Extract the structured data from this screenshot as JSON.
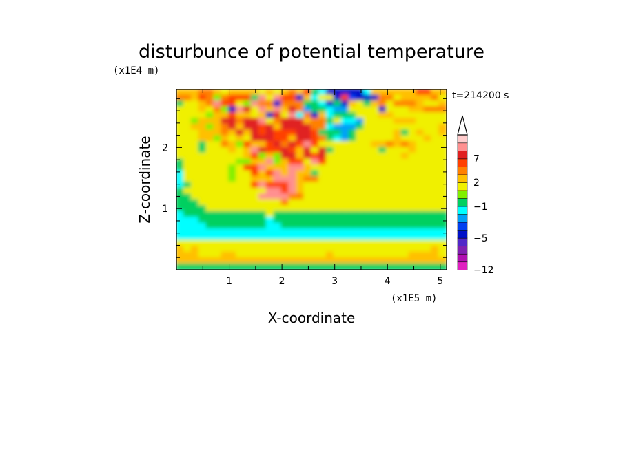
{
  "chart_data": {
    "type": "heatmap",
    "title": "disturbunce of potential temperature",
    "time_label": "t=214200 s",
    "xlabel": "X-coordinate",
    "ylabel": "Z-coordinate",
    "x_unit": "(x1E5 m)",
    "y_unit": "(x1E4 m)",
    "xlim": [
      0,
      5.12
    ],
    "ylim": [
      0,
      2.95
    ],
    "x_ticks": [
      "1",
      "2",
      "3",
      "4",
      "5"
    ],
    "y_ticks": [
      "1",
      "2"
    ],
    "colorbar": {
      "extend": "max",
      "levels": [
        -12,
        -11,
        -9,
        -7,
        -5,
        -4,
        -3,
        -2,
        -1,
        0,
        1,
        2,
        3,
        5,
        7,
        9,
        11
      ],
      "labeled_levels": [
        "-12",
        "-5",
        "-1",
        "2",
        "7"
      ],
      "colors": [
        "#e020c0",
        "#b010b0",
        "#8020b0",
        "#5028c8",
        "#0010c8",
        "#0040f0",
        "#00a0f8",
        "#00ffff",
        "#00d060",
        "#80f000",
        "#f0f000",
        "#ffc000",
        "#ff8000",
        "#ff4000",
        "#e02020",
        "#ff9090",
        "#ffcccc"
      ],
      "overflow_color": "#ffffff"
    },
    "field_rows": [
      "OOOooOyOOOOyOyOoOrgtLLLLLtOOOOOOrrOO",
      "ooOroYorrrgTyTrrLOtyyLrbLLLooyOOOOoy",
      "gyyOoTrryYTooLoooggtLgLOygOoyoooOyyO",
      "yyyOyoYLTRyTOTORocggtccyyyyLyyyOOooo",
      "yyyyYOOrOOyOLRyTtoLOtgggyyyOOyyyyyyy",
      "yyYOOORRoRRTyoRRROoogyttcyyyyOOOyyyy",
      "yyOOYOoRORRrRORRRRootcccgyyyyyyyyyyO",
      "yyyOOOoORORrRrrrRRrgggcgyyyyyOgyOyyO",
      "yyyOOYOyOyRRRrrORRrogtcgyyyyyOyyyOyy",
      "yyygyyoOYrOOrRoRrTryyyyyyyOOoOoOyyyy",
      "yyygyyyOyOTRrrRrORyRgyyyyyygyyyOyyyy",
      "yyyyyyyyyOrYOYRRORrRyyyyyyyyyyOyyyyy",
      "gyyyyyyyYYOOTYOrryTryyyyyyyyyyyyyyyy",
      "gyyyyyyYyrrTOOOTTOyyyyyyyyyyyyyyyyyy",
      "tyyyyyyYyyrOrTOTOOgyyyyyyyyyyyyyyyyy",
      "tyyyyyyYyyOOOTTTOooyyyyyyyyyyyyyyyyy",
      "tgyyyyyyyyrTrrrTOyyyyyyyyyyyyyyyyyyy",
      "gyyyyyyyyyyyTTrTOyyyyyyyyyyyyyyyyyyy",
      "ggyyyyyyyyyTTTTooyyyyyyyyyyyyyyyyyyy",
      "gggyyyyyyyyyyyoyyyyyyyyyyyyyyyyyyyyy",
      "ggggyyyyyyyyyyyyyyyyyyyyyyyyyyyyyyyy",
      "tgggggggggggygggggggggggggggggggggg",
      "tttgggggggggtggggggggggggggggggggggg",
      "ttttggggggggttgggggggggggggggggggggg",
      "tttttttttttttttttttttttttttttttttttt",
      "tttttttttttttttttttttttttttttttttttt",
      "yyyyyyyyyyyyyyyyyyyyyyyyyyyyyyyyyyyy",
      "OyOyyyyyyyyyyyyyyyyyyyyyyyyyyyyyyyOy",
      "OOOyyyOOyyyyyyyyyyyyOyyyyyyyyyyOOOOy",
      "OOOOOOOOOOOOOOOOOOOOOOOOOOOOOOOOOOOO",
      "gggggggggggggggggggggggggggggggggggg"
    ]
  }
}
